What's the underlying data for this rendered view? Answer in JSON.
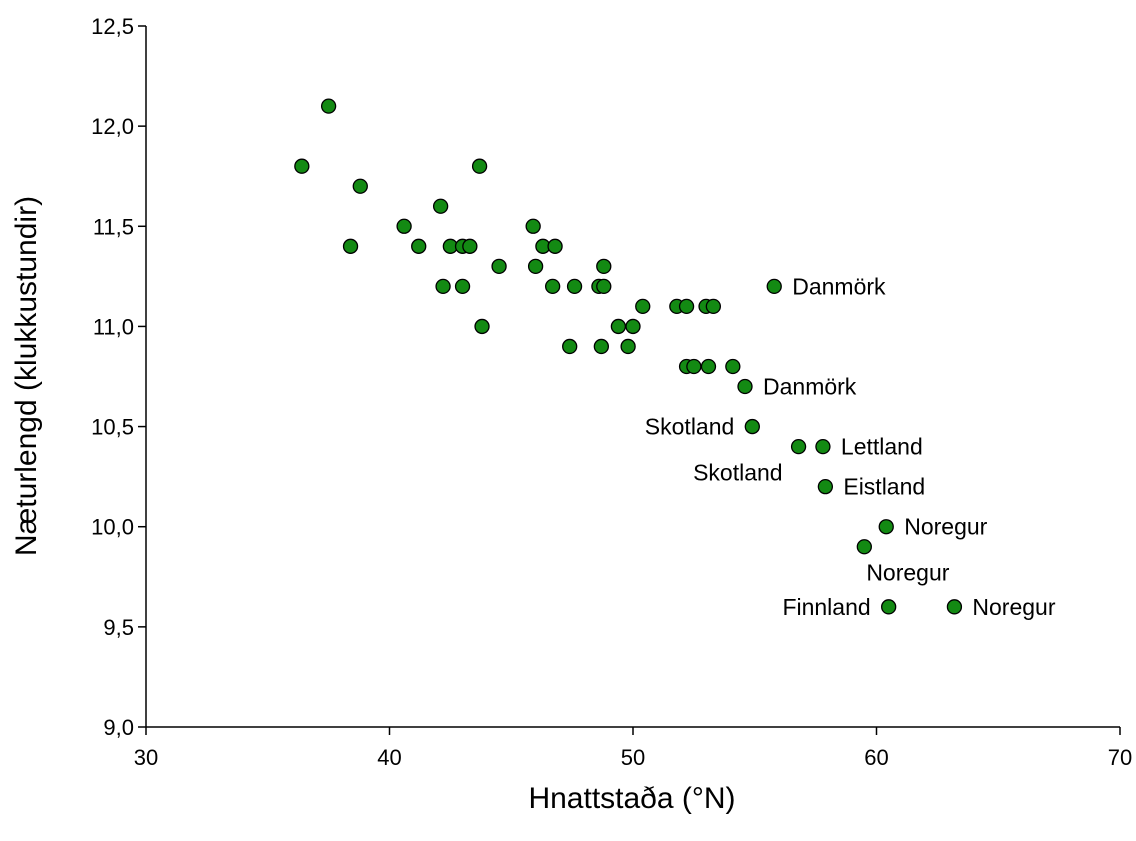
{
  "chart_data": {
    "type": "scatter",
    "title": "",
    "xlabel": "Hnattstaða (°N)",
    "ylabel": "Næturlengd (klukkustundir)",
    "xlim": [
      30,
      70
    ],
    "ylim": [
      9.0,
      12.5
    ],
    "x_ticks": [
      30,
      40,
      50,
      60,
      70
    ],
    "y_ticks": [
      9.0,
      9.5,
      10.0,
      10.5,
      11.0,
      11.5,
      12.0,
      12.5
    ],
    "x_tick_labels": [
      "30",
      "40",
      "50",
      "60",
      "70"
    ],
    "y_tick_labels": [
      "9,0",
      "9,5",
      "10,0",
      "10,5",
      "11,0",
      "11,5",
      "12,0",
      "12,5"
    ],
    "grid": false,
    "marker_color": "#138a13",
    "marker_edge_color": "#000000",
    "series": [
      {
        "points": [
          {
            "x": 36.4,
            "y": 11.8
          },
          {
            "x": 37.5,
            "y": 12.1
          },
          {
            "x": 38.4,
            "y": 11.4
          },
          {
            "x": 38.8,
            "y": 11.7
          },
          {
            "x": 40.6,
            "y": 11.5
          },
          {
            "x": 41.2,
            "y": 11.4
          },
          {
            "x": 42.1,
            "y": 11.6
          },
          {
            "x": 42.2,
            "y": 11.2
          },
          {
            "x": 42.5,
            "y": 11.4
          },
          {
            "x": 43.0,
            "y": 11.4
          },
          {
            "x": 43.0,
            "y": 11.2
          },
          {
            "x": 43.3,
            "y": 11.4
          },
          {
            "x": 43.7,
            "y": 11.8
          },
          {
            "x": 43.8,
            "y": 11.0
          },
          {
            "x": 44.5,
            "y": 11.3
          },
          {
            "x": 45.9,
            "y": 11.5
          },
          {
            "x": 46.0,
            "y": 11.3
          },
          {
            "x": 46.3,
            "y": 11.4
          },
          {
            "x": 46.7,
            "y": 11.2
          },
          {
            "x": 46.8,
            "y": 11.4
          },
          {
            "x": 47.4,
            "y": 10.9
          },
          {
            "x": 47.6,
            "y": 11.2
          },
          {
            "x": 48.6,
            "y": 11.2
          },
          {
            "x": 48.7,
            "y": 10.9
          },
          {
            "x": 48.8,
            "y": 11.3
          },
          {
            "x": 48.8,
            "y": 11.2
          },
          {
            "x": 49.4,
            "y": 11.0
          },
          {
            "x": 49.8,
            "y": 10.9
          },
          {
            "x": 50.0,
            "y": 11.0
          },
          {
            "x": 50.4,
            "y": 11.1
          },
          {
            "x": 51.8,
            "y": 11.1
          },
          {
            "x": 52.2,
            "y": 10.8
          },
          {
            "x": 52.2,
            "y": 11.1
          },
          {
            "x": 52.5,
            "y": 10.8
          },
          {
            "x": 53.0,
            "y": 11.1
          },
          {
            "x": 53.1,
            "y": 10.8
          },
          {
            "x": 53.3,
            "y": 11.1
          },
          {
            "x": 54.1,
            "y": 10.8
          },
          {
            "x": 54.6,
            "y": 10.7,
            "label": "Danmörk",
            "label_side": "right"
          },
          {
            "x": 54.9,
            "y": 10.5,
            "label": "Skotland",
            "label_side": "left"
          },
          {
            "x": 55.8,
            "y": 11.2,
            "label": "Danmörk",
            "label_side": "right"
          },
          {
            "x": 56.8,
            "y": 10.4,
            "label": "Skotland",
            "label_side": "below-left"
          },
          {
            "x": 57.8,
            "y": 10.4,
            "label": "Lettland",
            "label_side": "right"
          },
          {
            "x": 57.9,
            "y": 10.2,
            "label": "Eistland",
            "label_side": "right"
          },
          {
            "x": 59.5,
            "y": 9.9,
            "label": "Noregur",
            "label_side": "below-right"
          },
          {
            "x": 60.4,
            "y": 10.0,
            "label": "Noregur",
            "label_side": "right"
          },
          {
            "x": 60.5,
            "y": 9.6,
            "label": "Finnland",
            "label_side": "left"
          },
          {
            "x": 63.2,
            "y": 9.6,
            "label": "Noregur",
            "label_side": "right"
          }
        ]
      }
    ]
  }
}
